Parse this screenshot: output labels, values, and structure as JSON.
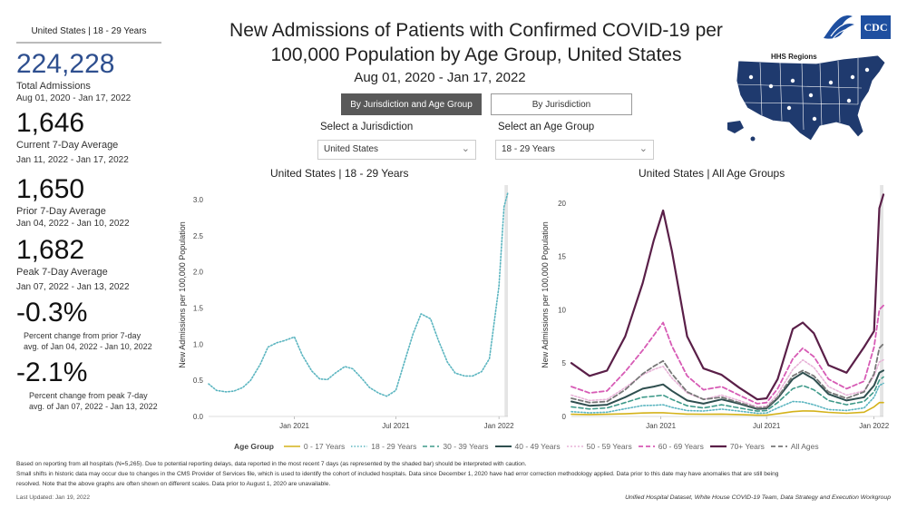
{
  "left_panel": {
    "header": "United States | 18 - 29 Years",
    "total_value": "224,228",
    "total_label": "Total Admissions",
    "total_dates": "Aug 01, 2020 - Jan 17, 2022",
    "current_value": "1,646",
    "current_label": "Current 7-Day Average",
    "current_dates": "Jan 11, 2022 - Jan 17, 2022",
    "prior_value": "1,650",
    "prior_label": "Prior 7-Day Average",
    "prior_dates": "Jan 04, 2022 - Jan 10, 2022",
    "peak_value": "1,682",
    "peak_label": "Peak 7-Day Average",
    "peak_dates": "Jan 07, 2022 - Jan 13, 2022",
    "change_prior_value": "-0.3%",
    "change_prior_text_1": "Percent change from prior 7-day",
    "change_prior_text_2": "avg. of Jan 04, 2022 - Jan 10, 2022",
    "change_peak_value": "-2.1%",
    "change_peak_text_1": "Percent change from peak 7-day",
    "change_peak_text_2": "avg. of Jan 07, 2022 - Jan 13, 2022"
  },
  "title_line1": "New Admissions of Patients with Confirmed COVID-19 per",
  "title_line2": "100,000 Population by Age Group, United States",
  "subtitle": "Aug 01, 2020 - Jan 17, 2022",
  "buttons": {
    "active": "By Jurisdiction and Age Group",
    "inactive": "By Jurisdiction"
  },
  "selectors": {
    "jurisdiction_label": "Select a Jurisdiction",
    "jurisdiction_value": "United States",
    "age_label": "Select an Age Group",
    "age_value": "18 - 29 Years"
  },
  "logos": {
    "cdc": "CDC",
    "hhs_icon": "hhs-eagle-icon",
    "map_label": "HHS Regions"
  },
  "legend": {
    "title": "Age Group",
    "items": [
      "0 - 17 Years",
      "18 - 29 Years",
      "30 - 39 Years",
      "40 - 49 Years",
      "50 - 59 Years",
      "60 - 69 Years",
      "70+ Years",
      "All Ages"
    ]
  },
  "footer": {
    "line1": "Based on reporting from all hospitals (N=5,265). Due to potential reporting delays, data reported in the most recent 7 days (as represented by the shaded bar) should be interpreted with caution.",
    "line2": "Small shifts in historic data may occur due to changes in the CMS Provider of Services file, which is used to identify the cohort of included hospitals. Data since December 1, 2020 have had error correction methodology applied. Data prior to this date may have anomalies that are still being",
    "line3": "resolved. Note that the above graphs are often shown on different scales. Data prior to August 1, 2020 are unavailable.",
    "updated": "Last Updated: Jan 19, 2022",
    "source": "Unified Hospital Dataset, White House COVID-19 Team, Data Strategy and Execution Workgroup"
  },
  "colors": {
    "age_0_17": "#d4b21a",
    "age_18_29": "#5bb5c0",
    "age_30_39": "#3f9a8a",
    "age_40_49": "#2f4f4f",
    "age_50_59": "#e8b4d8",
    "age_60_69": "#d75bb5",
    "age_70_plus": "#5a1f48",
    "all_ages": "#777777",
    "kpi_blue": "#2e4f8f",
    "cdc_blue": "#1e4fa0"
  },
  "chart_data": [
    {
      "type": "line",
      "title": "United States | 18 - 29 Years",
      "ylabel": "New Admissions per 100,000 Population",
      "xlabel": "",
      "x_range": [
        "2020-08-01",
        "2022-01-17"
      ],
      "x_ticks": [
        "Jan 2021",
        "Jul 2021",
        "Jan 2022"
      ],
      "ylim": [
        0,
        3.1
      ],
      "y_ticks": [
        "0.0",
        "0.5",
        "1.0",
        "1.5",
        "2.0",
        "2.5",
        "3.0"
      ],
      "series": [
        {
          "name": "18 - 29 Years",
          "x": [
            "2020-08-01",
            "2020-08-15",
            "2020-09-01",
            "2020-09-15",
            "2020-10-01",
            "2020-10-15",
            "2020-11-01",
            "2020-11-15",
            "2020-12-01",
            "2020-12-15",
            "2021-01-01",
            "2021-01-15",
            "2021-02-01",
            "2021-02-15",
            "2021-03-01",
            "2021-03-15",
            "2021-04-01",
            "2021-04-15",
            "2021-05-01",
            "2021-05-15",
            "2021-06-01",
            "2021-06-15",
            "2021-07-01",
            "2021-07-15",
            "2021-08-01",
            "2021-08-15",
            "2021-09-01",
            "2021-09-15",
            "2021-10-01",
            "2021-10-15",
            "2021-11-01",
            "2021-11-15",
            "2021-12-01",
            "2021-12-15",
            "2022-01-01",
            "2022-01-10",
            "2022-01-17"
          ],
          "values": [
            0.45,
            0.36,
            0.34,
            0.35,
            0.4,
            0.5,
            0.72,
            0.96,
            1.02,
            1.05,
            1.1,
            0.85,
            0.63,
            0.52,
            0.51,
            0.6,
            0.69,
            0.66,
            0.53,
            0.4,
            0.32,
            0.28,
            0.36,
            0.72,
            1.15,
            1.42,
            1.35,
            1.05,
            0.75,
            0.6,
            0.56,
            0.56,
            0.62,
            0.8,
            1.8,
            2.9,
            3.1
          ]
        }
      ]
    },
    {
      "type": "line",
      "title": "United States | All Age Groups",
      "ylabel": "New Admissions per 100,000 Population",
      "xlabel": "",
      "x_range": [
        "2020-08-01",
        "2022-01-17"
      ],
      "x_ticks": [
        "Jan 2021",
        "Jul 2021",
        "Jan 2022"
      ],
      "ylim": [
        0,
        21
      ],
      "y_ticks": [
        "0",
        "5",
        "10",
        "15",
        "20"
      ],
      "x": [
        "2020-08-01",
        "2020-09-01",
        "2020-10-01",
        "2020-11-01",
        "2020-12-01",
        "2020-12-20",
        "2021-01-05",
        "2021-01-20",
        "2021-02-15",
        "2021-03-15",
        "2021-04-15",
        "2021-05-15",
        "2021-06-15",
        "2021-07-01",
        "2021-07-20",
        "2021-08-15",
        "2021-09-01",
        "2021-09-20",
        "2021-10-15",
        "2021-11-15",
        "2021-12-15",
        "2022-01-01",
        "2022-01-10",
        "2022-01-17"
      ],
      "series": [
        {
          "name": "0 - 17 Years",
          "values": [
            0.2,
            0.18,
            0.2,
            0.25,
            0.32,
            0.35,
            0.35,
            0.3,
            0.22,
            0.2,
            0.22,
            0.18,
            0.12,
            0.12,
            0.25,
            0.45,
            0.52,
            0.5,
            0.38,
            0.3,
            0.4,
            0.9,
            1.3,
            1.3
          ]
        },
        {
          "name": "18 - 29 Years",
          "values": [
            0.45,
            0.34,
            0.4,
            0.72,
            1.02,
            1.05,
            1.1,
            0.85,
            0.55,
            0.51,
            0.69,
            0.5,
            0.3,
            0.32,
            0.8,
            1.4,
            1.35,
            1.1,
            0.65,
            0.56,
            0.8,
            1.8,
            2.9,
            3.1
          ]
        },
        {
          "name": "30 - 39 Years",
          "values": [
            0.9,
            0.7,
            0.8,
            1.3,
            1.8,
            1.9,
            2.0,
            1.6,
            1.0,
            0.8,
            1.1,
            0.8,
            0.5,
            0.55,
            1.3,
            2.6,
            2.9,
            2.5,
            1.5,
            1.1,
            1.4,
            2.3,
            3.4,
            3.7
          ]
        },
        {
          "name": "40 - 49 Years",
          "values": [
            1.4,
            1.0,
            1.1,
            1.8,
            2.6,
            2.8,
            3.0,
            2.4,
            1.5,
            1.2,
            1.6,
            1.2,
            0.7,
            0.75,
            1.7,
            3.5,
            4.1,
            3.5,
            2.1,
            1.5,
            1.8,
            2.9,
            4.1,
            4.3
          ]
        },
        {
          "name": "50 - 59 Years",
          "values": [
            2.0,
            1.5,
            1.6,
            2.7,
            3.9,
            4.4,
            4.7,
            3.6,
            2.2,
            1.6,
            2.0,
            1.5,
            0.9,
            0.95,
            2.1,
            4.4,
            5.3,
            4.6,
            2.8,
            2.0,
            2.4,
            3.8,
            5.1,
            5.3
          ]
        },
        {
          "name": "60 - 69 Years",
          "values": [
            2.8,
            2.2,
            2.4,
            4.2,
            6.2,
            7.6,
            8.8,
            6.6,
            3.8,
            2.5,
            2.8,
            2.0,
            1.2,
            1.3,
            2.6,
            5.4,
            6.4,
            5.6,
            3.5,
            2.6,
            3.3,
            6.5,
            10.0,
            10.4
          ]
        },
        {
          "name": "70+ Years",
          "values": [
            5.0,
            3.8,
            4.3,
            7.5,
            12.5,
            16.5,
            19.3,
            15.5,
            7.5,
            4.5,
            3.9,
            2.7,
            1.6,
            1.7,
            3.5,
            8.2,
            8.8,
            7.8,
            4.8,
            4.1,
            6.5,
            8.0,
            19.5,
            20.8
          ]
        },
        {
          "name": "All Ages",
          "values": [
            1.7,
            1.3,
            1.4,
            2.5,
            4.0,
            4.7,
            5.2,
            4.0,
            2.3,
            1.6,
            1.8,
            1.3,
            0.8,
            0.85,
            1.8,
            3.8,
            4.3,
            3.8,
            2.3,
            1.7,
            2.3,
            4.0,
            6.4,
            6.8
          ]
        }
      ]
    }
  ]
}
